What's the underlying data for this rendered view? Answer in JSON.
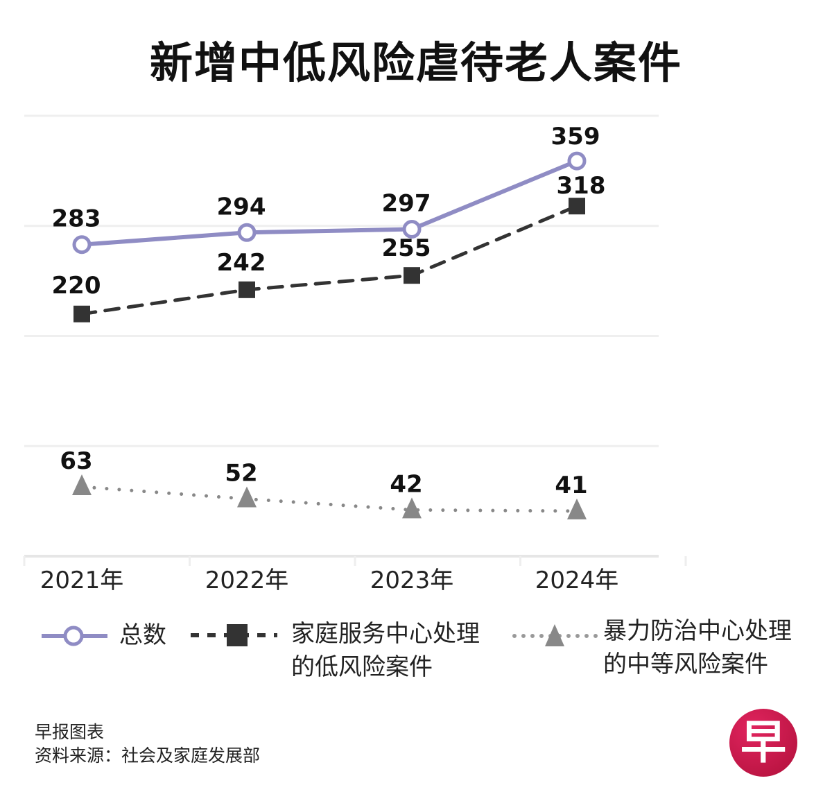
{
  "chart_data": {
    "type": "line",
    "title": "新增中低风险虐待老人案件",
    "categories": [
      "2021年",
      "2022年",
      "2023年",
      "2024年"
    ],
    "ylim": [
      0,
      400
    ],
    "grid": true,
    "legend_placement": "bottom",
    "series": [
      {
        "name": "总数",
        "values": [
          283,
          294,
          297,
          359
        ],
        "color": "#8f8cc4",
        "style": "solid",
        "marker": "open-circle"
      },
      {
        "name": "家庭服务中心处理的低风险案件",
        "name_lines": [
          "家庭服务中心处理",
          "的低风险案件"
        ],
        "values": [
          220,
          242,
          255,
          318
        ],
        "color": "#333333",
        "style": "dashed",
        "marker": "square"
      },
      {
        "name": "暴力防治中心处理的中等风险案件",
        "name_lines": [
          "暴力防治中心处理",
          "的中等风险案件"
        ],
        "values": [
          63,
          52,
          42,
          41
        ],
        "color": "#888888",
        "style": "dotted",
        "marker": "triangle"
      }
    ]
  },
  "footer": {
    "credit": "早报图表",
    "source": "资料来源：社会及家庭发展部"
  },
  "logo_text": "早"
}
